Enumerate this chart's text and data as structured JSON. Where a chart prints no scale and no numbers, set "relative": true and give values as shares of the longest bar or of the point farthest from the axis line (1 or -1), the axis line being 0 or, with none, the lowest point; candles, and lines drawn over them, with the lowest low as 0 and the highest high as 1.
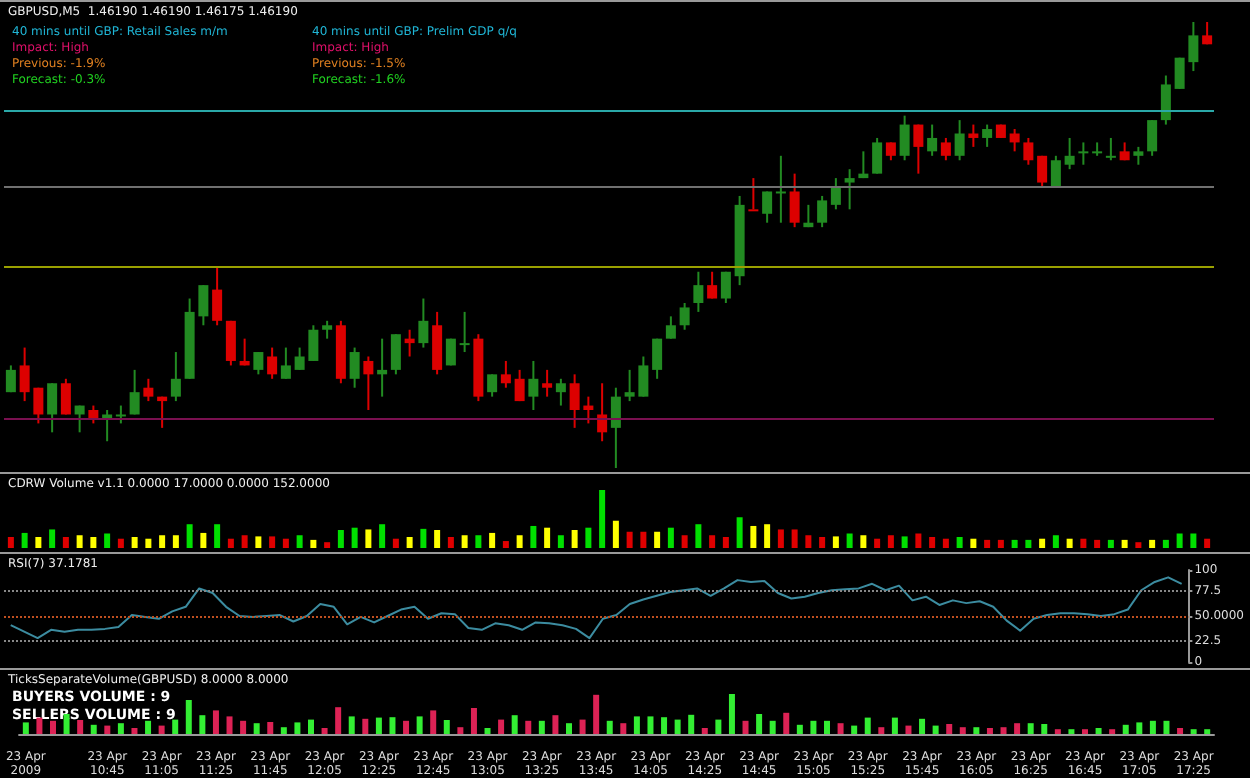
{
  "chart_data": [
    {
      "type": "candlestick",
      "title": "GBPUSD,M5  1.46190 1.46190 1.46175 1.46190",
      "relative": true,
      "tick_labels": false,
      "annotations": [
        "40 mins until GBP: Retail Sales m/m",
        "Impact: High",
        "Previous: -1.9%",
        "Forecast: -0.3%",
        "40 mins until GBP: Prelim GDP q/q",
        "Impact: High",
        "Previous: -1.5%",
        "Forecast: -1.6%"
      ],
      "categories": [
        null,
        null,
        null,
        null,
        null,
        null,
        null,
        null,
        null,
        null,
        null,
        null,
        null,
        null,
        null,
        null,
        null,
        null,
        null,
        null,
        null,
        null,
        null,
        null,
        null,
        null,
        null,
        null,
        null,
        null,
        null,
        null,
        null,
        null,
        null,
        null,
        null,
        null,
        null,
        null,
        null,
        null,
        null,
        null,
        null,
        null,
        null,
        null,
        null,
        null,
        null,
        null,
        null,
        null,
        null,
        null,
        null,
        null,
        null,
        null,
        null,
        null,
        null,
        null,
        null,
        null,
        null,
        null,
        null,
        null,
        null,
        null,
        null,
        null,
        null,
        null,
        null,
        null,
        null,
        null,
        null,
        null,
        null,
        null,
        null,
        null,
        null,
        null
      ],
      "ohlc": [
        [
          0.17,
          0.23,
          0.17,
          0.22
        ],
        [
          0.23,
          0.27,
          0.15,
          0.17
        ],
        [
          0.18,
          0.18,
          0.1,
          0.12
        ],
        [
          0.12,
          0.19,
          0.08,
          0.19
        ],
        [
          0.19,
          0.2,
          0.12,
          0.12
        ],
        [
          0.12,
          0.14,
          0.08,
          0.14
        ],
        [
          0.13,
          0.14,
          0.1,
          0.11
        ],
        [
          0.11,
          0.13,
          0.06,
          0.12
        ],
        [
          0.12,
          0.14,
          0.1,
          0.12
        ],
        [
          0.12,
          0.22,
          0.12,
          0.17
        ],
        [
          0.18,
          0.2,
          0.15,
          0.16
        ],
        [
          0.16,
          0.16,
          0.09,
          0.15
        ],
        [
          0.16,
          0.26,
          0.15,
          0.2
        ],
        [
          0.2,
          0.38,
          0.2,
          0.35
        ],
        [
          0.34,
          0.41,
          0.32,
          0.41
        ],
        [
          0.4,
          0.45,
          0.32,
          0.33
        ],
        [
          0.33,
          0.33,
          0.23,
          0.24
        ],
        [
          0.24,
          0.29,
          0.23,
          0.23
        ],
        [
          0.22,
          0.26,
          0.21,
          0.26
        ],
        [
          0.25,
          0.27,
          0.2,
          0.21
        ],
        [
          0.2,
          0.27,
          0.2,
          0.23
        ],
        [
          0.22,
          0.27,
          0.22,
          0.25
        ],
        [
          0.24,
          0.32,
          0.24,
          0.31
        ],
        [
          0.31,
          0.33,
          0.29,
          0.32
        ],
        [
          0.32,
          0.33,
          0.19,
          0.2
        ],
        [
          0.2,
          0.27,
          0.18,
          0.26
        ],
        [
          0.24,
          0.25,
          0.13,
          0.21
        ],
        [
          0.21,
          0.29,
          0.16,
          0.22
        ],
        [
          0.22,
          0.3,
          0.21,
          0.3
        ],
        [
          0.29,
          0.31,
          0.25,
          0.28
        ],
        [
          0.28,
          0.38,
          0.27,
          0.33
        ],
        [
          0.32,
          0.35,
          0.21,
          0.22
        ],
        [
          0.23,
          0.29,
          0.23,
          0.29
        ],
        [
          0.28,
          0.35,
          0.26,
          0.28
        ],
        [
          0.29,
          0.3,
          0.15,
          0.16
        ],
        [
          0.17,
          0.21,
          0.16,
          0.21
        ],
        [
          0.21,
          0.24,
          0.18,
          0.19
        ],
        [
          0.2,
          0.22,
          0.15,
          0.15
        ],
        [
          0.16,
          0.24,
          0.13,
          0.2
        ],
        [
          0.19,
          0.22,
          0.16,
          0.18
        ],
        [
          0.17,
          0.2,
          0.14,
          0.19
        ],
        [
          0.19,
          0.21,
          0.09,
          0.13
        ],
        [
          0.14,
          0.16,
          0.1,
          0.13
        ],
        [
          0.12,
          0.19,
          0.06,
          0.08
        ],
        [
          0.09,
          0.18,
          0,
          0.16
        ],
        [
          0.16,
          0.22,
          0.15,
          0.17
        ],
        [
          0.16,
          0.25,
          0.16,
          0.23
        ],
        [
          0.22,
          0.29,
          0.2,
          0.29
        ],
        [
          0.29,
          0.34,
          0.29,
          0.32
        ],
        [
          0.32,
          0.37,
          0.31,
          0.36
        ],
        [
          0.37,
          0.44,
          0.35,
          0.41
        ],
        [
          0.41,
          0.44,
          0.38,
          0.38
        ],
        [
          0.38,
          0.44,
          0.37,
          0.44
        ],
        [
          0.43,
          0.61,
          0.41,
          0.59
        ],
        [
          0.58,
          0.65,
          0.58,
          0.58
        ],
        [
          0.57,
          0.62,
          0.55,
          0.62
        ],
        [
          0.62,
          0.7,
          0.55,
          0.62
        ],
        [
          0.62,
          0.66,
          0.54,
          0.55
        ],
        [
          0.54,
          0.59,
          0.54,
          0.55
        ],
        [
          0.55,
          0.61,
          0.54,
          0.6
        ],
        [
          0.59,
          0.65,
          0.58,
          0.63
        ],
        [
          0.64,
          0.67,
          0.58,
          0.65
        ],
        [
          0.65,
          0.71,
          0.65,
          0.66
        ],
        [
          0.66,
          0.74,
          0.66,
          0.73
        ],
        [
          0.73,
          0.73,
          0.69,
          0.7
        ],
        [
          0.7,
          0.79,
          0.69,
          0.77
        ],
        [
          0.77,
          0.77,
          0.66,
          0.72
        ],
        [
          0.71,
          0.77,
          0.7,
          0.74
        ],
        [
          0.73,
          0.74,
          0.69,
          0.7
        ],
        [
          0.7,
          0.78,
          0.69,
          0.75
        ],
        [
          0.75,
          0.77,
          0.72,
          0.74
        ],
        [
          0.74,
          0.77,
          0.72,
          0.76
        ],
        [
          0.77,
          0.77,
          0.74,
          0.74
        ],
        [
          0.75,
          0.76,
          0.71,
          0.73
        ],
        [
          0.73,
          0.74,
          0.68,
          0.69
        ],
        [
          0.7,
          0.7,
          0.63,
          0.64
        ],
        [
          0.63,
          0.7,
          0.63,
          0.69
        ],
        [
          0.68,
          0.74,
          0.67,
          0.7
        ],
        [
          0.71,
          0.73,
          0.68,
          0.71
        ],
        [
          0.71,
          0.73,
          0.7,
          0.71
        ],
        [
          0.7,
          0.74,
          0.69,
          0.7
        ],
        [
          0.71,
          0.73,
          0.69,
          0.69
        ],
        [
          0.7,
          0.72,
          0.68,
          0.71
        ],
        [
          0.71,
          0.78,
          0.7,
          0.78
        ],
        [
          0.78,
          0.88,
          0.77,
          0.86
        ],
        [
          0.85,
          0.92,
          0.85,
          0.92
        ],
        [
          0.91,
          1,
          0.89,
          0.97
        ],
        [
          0.97,
          1,
          0.95,
          0.95
        ]
      ],
      "colors": [
        "#228b22",
        "#dd0000",
        "#dd0000",
        "#228b22",
        "#dd0000",
        "#228b22",
        "#dd0000",
        "#228b22",
        "#228b22",
        "#228b22",
        "#dd0000",
        "#dd0000",
        "#228b22",
        "#228b22",
        "#228b22",
        "#dd0000",
        "#dd0000",
        "#dd0000",
        "#228b22",
        "#dd0000",
        "#228b22",
        "#228b22",
        "#228b22",
        "#228b22",
        "#dd0000",
        "#228b22",
        "#dd0000",
        "#228b22",
        "#228b22",
        "#dd0000",
        "#228b22",
        "#dd0000",
        "#228b22",
        "#228b22",
        "#dd0000",
        "#228b22",
        "#dd0000",
        "#dd0000",
        "#228b22",
        "#dd0000",
        "#228b22",
        "#dd0000",
        "#dd0000",
        "#dd0000",
        "#228b22",
        "#228b22",
        "#228b22",
        "#228b22",
        "#228b22",
        "#228b22",
        "#228b22",
        "#dd0000",
        "#228b22",
        "#228b22",
        "#dd0000",
        "#228b22",
        "#228b22",
        "#dd0000",
        "#228b22",
        "#228b22",
        "#228b22",
        "#228b22",
        "#228b22",
        "#228b22",
        "#dd0000",
        "#228b22",
        "#dd0000",
        "#228b22",
        "#dd0000",
        "#228b22",
        "#dd0000",
        "#228b22",
        "#dd0000",
        "#dd0000",
        "#dd0000",
        "#dd0000",
        "#228b22",
        "#228b22",
        "#228b22",
        "#228b22",
        "#228b22",
        "#dd0000",
        "#228b22",
        "#228b22",
        "#228b22",
        "#228b22",
        "#228b22",
        "#dd0000"
      ],
      "ref_lines": [
        {
          "axis": "y",
          "value": 0.8,
          "color": "#2aa8a8"
        },
        {
          "axis": "y",
          "value": 0.63,
          "color": "#707070"
        },
        {
          "axis": "y",
          "value": 0.45,
          "color": "#9aa000"
        },
        {
          "axis": "y",
          "value": 0.11,
          "color": "#7a1050"
        }
      ]
    },
    {
      "type": "bar",
      "title": "CDRW Volume v1.1 0.0000 17.0000 0.0000 152.0000",
      "relative": true,
      "tick_labels": false,
      "categories": [
        null,
        null,
        null,
        null,
        null,
        null,
        null,
        null,
        null,
        null,
        null,
        null,
        null,
        null,
        null,
        null,
        null,
        null,
        null,
        null,
        null,
        null,
        null,
        null,
        null,
        null,
        null,
        null,
        null,
        null,
        null,
        null,
        null,
        null,
        null,
        null,
        null,
        null,
        null,
        null,
        null,
        null,
        null,
        null,
        null,
        null,
        null,
        null,
        null,
        null,
        null,
        null,
        null,
        null,
        null,
        null,
        null,
        null,
        null,
        null,
        null,
        null,
        null,
        null,
        null,
        null,
        null,
        null,
        null,
        null,
        null,
        null,
        null,
        null,
        null,
        null,
        null,
        null,
        null,
        null,
        null,
        null,
        null,
        null,
        null,
        null,
        null,
        null
      ],
      "values": [
        0.19,
        0.26,
        0.19,
        0.32,
        0.19,
        0.22,
        0.19,
        0.25,
        0.16,
        0.19,
        0.16,
        0.22,
        0.22,
        0.41,
        0.26,
        0.41,
        0.16,
        0.22,
        0.2,
        0.2,
        0.16,
        0.22,
        0.14,
        0.1,
        0.31,
        0.35,
        0.32,
        0.41,
        0.16,
        0.19,
        0.33,
        0.31,
        0.19,
        0.22,
        0.22,
        0.26,
        0.12,
        0.22,
        0.38,
        0.35,
        0.22,
        0.31,
        0.35,
        1,
        0.47,
        0.28,
        0.28,
        0.28,
        0.35,
        0.22,
        0.41,
        0.22,
        0.19,
        0.53,
        0.38,
        0.41,
        0.32,
        0.32,
        0.22,
        0.19,
        0.2,
        0.25,
        0.22,
        0.16,
        0.22,
        0.2,
        0.25,
        0.19,
        0.16,
        0.19,
        0.16,
        0.14,
        0.14,
        0.14,
        0.14,
        0.16,
        0.22,
        0.16,
        0.16,
        0.14,
        0.14,
        0.14,
        0.1,
        0.14,
        0.14,
        0.25,
        0.25,
        0.16
      ],
      "colors": [
        "#e00000",
        "#00e000",
        "#ffff00",
        "#00e000",
        "#e00000",
        "#ffff00",
        "#ffff00",
        "#00e000",
        "#e00000",
        "#ffff00",
        "#ffff00",
        "#ffff00",
        "#ffff00",
        "#00e000",
        "#ffff00",
        "#00e000",
        "#e00000",
        "#e00000",
        "#ffff00",
        "#e00000",
        "#e00000",
        "#00e000",
        "#ffff00",
        "#e00000",
        "#00e000",
        "#00e000",
        "#ffff00",
        "#00e000",
        "#e00000",
        "#ffff00",
        "#00e000",
        "#ffff00",
        "#e00000",
        "#ffff00",
        "#00e000",
        "#ffff00",
        "#e00000",
        "#ffff00",
        "#00e000",
        "#ffff00",
        "#00e000",
        "#ffff00",
        "#00e000",
        "#00e000",
        "#ffff00",
        "#e00000",
        "#e00000",
        "#ffff00",
        "#00e000",
        "#e00000",
        "#00e000",
        "#e00000",
        "#e00000",
        "#00e000",
        "#ffff00",
        "#ffff00",
        "#e00000",
        "#e00000",
        "#e00000",
        "#e00000",
        "#ffff00",
        "#00e000",
        "#ffff00",
        "#e00000",
        "#e00000",
        "#00e000",
        "#e00000",
        "#e00000",
        "#e00000",
        "#00e000",
        "#ffff00",
        "#e00000",
        "#e00000",
        "#00e000",
        "#00e000",
        "#ffff00",
        "#00e000",
        "#ffff00",
        "#e00000",
        "#e00000",
        "#00e000",
        "#ffff00",
        "#e00000",
        "#ffff00",
        "#00e000",
        "#00e000",
        "#00e000",
        "#e00000"
      ]
    },
    {
      "type": "line",
      "title": "RSI(7) 37.1781",
      "tick_labels": "y",
      "marker": "none",
      "ylim": [
        0,
        100
      ],
      "yticks": [
        0,
        22.5,
        {
          "value": 50,
          "label": "50.0000"
        },
        77.5,
        100
      ],
      "categories": [
        null,
        null,
        null,
        null,
        null,
        null,
        null,
        null,
        null,
        null,
        null,
        null,
        null,
        null,
        null,
        null,
        null,
        null,
        null,
        null,
        null,
        null,
        null,
        null,
        null,
        null,
        null,
        null,
        null,
        null,
        null,
        null,
        null,
        null,
        null,
        null,
        null,
        null,
        null,
        null,
        null,
        null,
        null,
        null,
        null,
        null,
        null,
        null,
        null,
        null,
        null,
        null,
        null,
        null,
        null,
        null,
        null,
        null,
        null,
        null,
        null,
        null,
        null,
        null,
        null,
        null,
        null,
        null,
        null,
        null,
        null,
        null,
        null,
        null,
        null,
        null,
        null,
        null,
        null,
        null,
        null,
        null,
        null,
        null,
        null,
        null,
        null,
        null
      ],
      "series": [
        {
          "color": "#3c8ca0",
          "values": [
            40,
            33,
            26,
            35,
            33,
            35,
            35,
            36,
            38,
            51,
            49,
            47,
            55,
            60,
            80,
            75,
            60,
            50,
            49,
            50,
            51,
            44,
            50,
            63,
            60,
            41,
            49,
            43,
            50,
            57,
            60,
            47,
            53,
            52,
            37,
            35,
            42,
            40,
            35,
            43,
            42,
            40,
            36,
            26,
            47,
            51,
            63,
            68,
            72,
            76,
            78,
            80,
            72,
            80,
            89,
            87,
            88,
            75,
            69,
            71,
            75,
            78,
            79,
            80,
            85,
            78,
            83,
            67,
            71,
            62,
            67,
            64,
            66,
            60,
            45,
            34,
            47,
            51,
            53,
            53,
            52,
            50,
            52,
            57,
            78,
            87,
            92,
            85
          ]
        }
      ],
      "ref_lines": [
        {
          "axis": "y",
          "value": 77.5,
          "color": "#888888",
          "line_style": "dotted"
        },
        {
          "axis": "y",
          "value": 50,
          "color": "#c05020",
          "line_style": "dotted"
        },
        {
          "axis": "y",
          "value": 22.5,
          "color": "#888888",
          "line_style": "dotted"
        }
      ]
    },
    {
      "type": "bar",
      "title": "TicksSeparateVolume(GBPUSD) 8.0000 8.0000",
      "relative": true,
      "tick_labels": "x",
      "annotations": [
        "BUYERS VOLUME : 9",
        "SELLERS VOLUME : 9"
      ],
      "categories": [
        "23 Apr 2009",
        null,
        null,
        null,
        null,
        null,
        "23 Apr 10:45",
        null,
        null,
        null,
        "23 Apr 11:05",
        null,
        null,
        null,
        "23 Apr 11:25",
        null,
        null,
        null,
        "23 Apr 11:45",
        null,
        null,
        null,
        "23 Apr 12:05",
        null,
        null,
        null,
        "23 Apr 12:25",
        null,
        null,
        null,
        "23 Apr 12:45",
        null,
        null,
        null,
        "23 Apr 13:05",
        null,
        null,
        null,
        "23 Apr 13:25",
        null,
        null,
        null,
        "23 Apr 13:45",
        null,
        null,
        null,
        "23 Apr 14:05",
        null,
        null,
        null,
        "23 Apr 14:25",
        null,
        null,
        null,
        "23 Apr 14:45",
        null,
        null,
        null,
        "23 Apr 15:05",
        null,
        null,
        null,
        "23 Apr 15:25",
        null,
        null,
        null,
        "23 Apr 15:45",
        null,
        null,
        null,
        "23 Apr 16:05",
        null,
        null,
        null,
        "23 Apr 16:25",
        null,
        null,
        null,
        "23 Apr 16:45",
        null,
        null,
        null,
        "23 Apr 17:05",
        null,
        null,
        null,
        "23 Apr 17:25",
        null
      ],
      "values": [
        0.29,
        0.41,
        0.33,
        0.5,
        0.35,
        0.23,
        0.21,
        0.27,
        0.15,
        0.33,
        0.21,
        0.36,
        0.85,
        0.47,
        0.59,
        0.44,
        0.33,
        0.27,
        0.3,
        0.17,
        0.29,
        0.36,
        0.15,
        0.67,
        0.44,
        0.38,
        0.41,
        0.42,
        0.33,
        0.44,
        0.59,
        0.35,
        0.17,
        0.65,
        0.15,
        0.36,
        0.47,
        0.33,
        0.33,
        0.47,
        0.27,
        0.36,
        0.98,
        0.33,
        0.27,
        0.44,
        0.44,
        0.42,
        0.36,
        0.48,
        0.15,
        0.36,
        1,
        0.33,
        0.5,
        0.33,
        0.53,
        0.23,
        0.33,
        0.33,
        0.27,
        0.21,
        0.41,
        0.17,
        0.41,
        0.21,
        0.38,
        0.21,
        0.25,
        0.17,
        0.17,
        0.15,
        0.17,
        0.27,
        0.27,
        0.25,
        0.12,
        0.12,
        0.12,
        0.15,
        0.12,
        0.23,
        0.29,
        0.33,
        0.33,
        0.15,
        0.12,
        0.12
      ],
      "colors": [
        "#33ee33",
        "#dd2255",
        "#dd2255",
        "#33ee33",
        "#dd2255",
        "#33ee33",
        "#dd2255",
        "#33ee33",
        "#dd2255",
        "#33ee33",
        "#dd2255",
        "#33ee33",
        "#33ee33",
        "#33ee33",
        "#dd2255",
        "#dd2255",
        "#dd2255",
        "#33ee33",
        "#dd2255",
        "#33ee33",
        "#33ee33",
        "#33ee33",
        "#dd2255",
        "#dd2255",
        "#33ee33",
        "#dd2255",
        "#33ee33",
        "#33ee33",
        "#dd2255",
        "#33ee33",
        "#dd2255",
        "#33ee33",
        "#dd2255",
        "#dd2255",
        "#33ee33",
        "#dd2255",
        "#33ee33",
        "#dd2255",
        "#33ee33",
        "#dd2255",
        "#33ee33",
        "#dd2255",
        "#dd2255",
        "#33ee33",
        "#dd2255",
        "#33ee33",
        "#33ee33",
        "#33ee33",
        "#33ee33",
        "#33ee33",
        "#dd2255",
        "#33ee33",
        "#33ee33",
        "#dd2255",
        "#33ee33",
        "#33ee33",
        "#dd2255",
        "#33ee33",
        "#33ee33",
        "#33ee33",
        "#dd2255",
        "#33ee33",
        "#33ee33",
        "#dd2255",
        "#33ee33",
        "#dd2255",
        "#33ee33",
        "#33ee33",
        "#dd2255",
        "#dd2255",
        "#33ee33",
        "#dd2255",
        "#dd2255",
        "#dd2255",
        "#33ee33",
        "#33ee33",
        "#dd2255",
        "#33ee33",
        "#dd2255",
        "#33ee33",
        "#dd2255",
        "#33ee33",
        "#33ee33",
        "#33ee33",
        "#33ee33",
        "#dd2255",
        "#33ee33",
        "#33ee33"
      ]
    }
  ]
}
